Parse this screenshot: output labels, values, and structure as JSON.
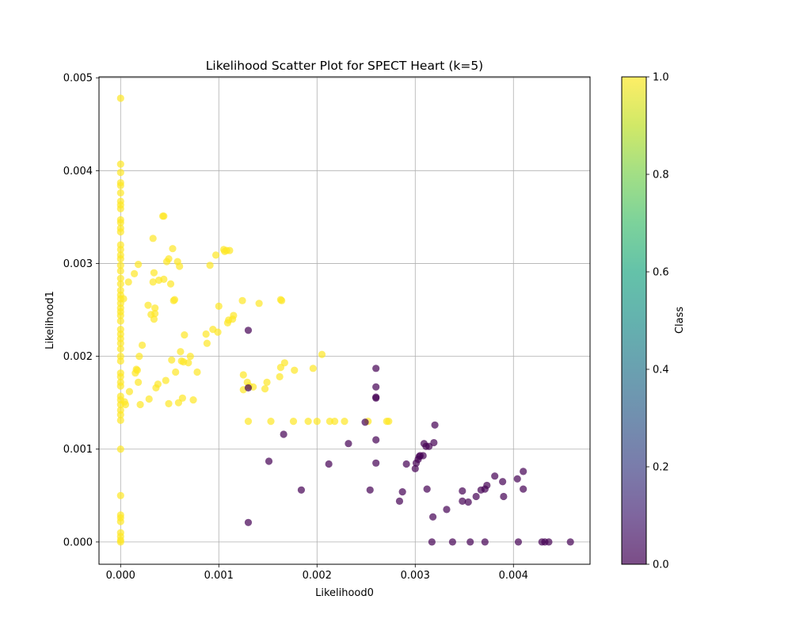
{
  "chart_data": {
    "type": "scatter",
    "title": "Likelihood Scatter Plot for SPECT Heart (k=5)",
    "xlabel": "Likelihood0",
    "ylabel": "Likelihood1",
    "xlim": [
      -0.00022,
      0.00478
    ],
    "ylim": [
      -0.00024,
      0.00501
    ],
    "x_ticks": [
      "0.000",
      "0.001",
      "0.002",
      "0.003",
      "0.004"
    ],
    "y_ticks": [
      "0.000",
      "0.001",
      "0.002",
      "0.003",
      "0.004",
      "0.005"
    ],
    "grid": true,
    "colorbar": {
      "label": "Class",
      "range": [
        0.0,
        1.0
      ],
      "ticks": [
        "0.0",
        "0.2",
        "0.4",
        "0.6",
        "0.8",
        "1.0"
      ],
      "colormap": "viridis"
    },
    "colors": {
      "class_0": "#440154",
      "class_1": "#fde725"
    },
    "marker_alpha": 0.7,
    "series": [
      {
        "class": 1,
        "points": [
          [
            0.0,
            0.00478
          ],
          [
            0.0,
            0.00407
          ],
          [
            0.0,
            0.00398
          ],
          [
            0.0,
            0.00387
          ],
          [
            0.0,
            0.00384
          ],
          [
            0.0,
            0.00376
          ],
          [
            0.0,
            0.00367
          ],
          [
            0.0,
            0.00363
          ],
          [
            0.0,
            0.00359
          ],
          [
            0.0,
            0.00347
          ],
          [
            0.0,
            0.00344
          ],
          [
            0.0,
            0.00338
          ],
          [
            0.0,
            0.00334
          ],
          [
            0.0,
            0.0032
          ],
          [
            0.0,
            0.00315
          ],
          [
            0.0,
            0.00309
          ],
          [
            0.0,
            0.00305
          ],
          [
            0.0,
            0.00298
          ],
          [
            0.0,
            0.00292
          ],
          [
            0.0,
            0.00284
          ],
          [
            0.0,
            0.00278
          ],
          [
            0.0,
            0.00271
          ],
          [
            0.0,
            0.00266
          ],
          [
            0.0,
            0.00262
          ],
          [
            0.0,
            0.00257
          ],
          [
            0.0,
            0.00252
          ],
          [
            0.0,
            0.00248
          ],
          [
            0.0,
            0.00244
          ],
          [
            0.0,
            0.00238
          ],
          [
            0.0,
            0.00229
          ],
          [
            0.0,
            0.00224
          ],
          [
            0.0,
            0.00219
          ],
          [
            0.0,
            0.00214
          ],
          [
            0.0,
            0.00208
          ],
          [
            0.0,
            0.002
          ],
          [
            0.0,
            0.00195
          ],
          [
            0.0,
            0.00182
          ],
          [
            0.0,
            0.00178
          ],
          [
            0.0,
            0.00172
          ],
          [
            0.0,
            0.00168
          ],
          [
            0.0,
            0.00157
          ],
          [
            0.0,
            0.00153
          ],
          [
            0.0,
            0.00148
          ],
          [
            0.0,
            0.00142
          ],
          [
            0.0,
            0.00137
          ],
          [
            0.0,
            0.00131
          ],
          [
            0.0,
            0.001
          ],
          [
            0.0,
            0.0005
          ],
          [
            0.0,
            0.00029
          ],
          [
            0.0,
            0.00026
          ],
          [
            0.0,
            0.00022
          ],
          [
            0.0,
            0.0001
          ],
          [
            0.0,
            6e-05
          ],
          [
            0.0,
            2e-05
          ],
          [
            0.0,
            0.0
          ],
          [
            3e-05,
            0.00262
          ],
          [
            4e-05,
            0.00151
          ],
          [
            5e-05,
            0.00148
          ],
          [
            8e-05,
            0.0028
          ],
          [
            9e-05,
            0.00162
          ],
          [
            0.00014,
            0.00289
          ],
          [
            0.00015,
            0.00182
          ],
          [
            0.00016,
            0.00186
          ],
          [
            0.00017,
            0.00185
          ],
          [
            0.00018,
            0.00299
          ],
          [
            0.00018,
            0.00172
          ],
          [
            0.00019,
            0.002
          ],
          [
            0.0002,
            0.00148
          ],
          [
            0.00022,
            0.00212
          ],
          [
            0.00028,
            0.00255
          ],
          [
            0.00029,
            0.00154
          ],
          [
            0.00031,
            0.00245
          ],
          [
            0.00033,
            0.00327
          ],
          [
            0.00033,
            0.0028
          ],
          [
            0.00034,
            0.0029
          ],
          [
            0.00034,
            0.0024
          ],
          [
            0.00035,
            0.00252
          ],
          [
            0.00035,
            0.00246
          ],
          [
            0.00036,
            0.00166
          ],
          [
            0.00038,
            0.0017
          ],
          [
            0.00039,
            0.00282
          ],
          [
            0.00043,
            0.00351
          ],
          [
            0.00044,
            0.00351
          ],
          [
            0.00044,
            0.00283
          ],
          [
            0.00046,
            0.00174
          ],
          [
            0.00047,
            0.00302
          ],
          [
            0.00049,
            0.00305
          ],
          [
            0.00049,
            0.00149
          ],
          [
            0.00051,
            0.00278
          ],
          [
            0.00052,
            0.00196
          ],
          [
            0.00053,
            0.00316
          ],
          [
            0.00054,
            0.0026
          ],
          [
            0.00055,
            0.00261
          ],
          [
            0.00056,
            0.00183
          ],
          [
            0.00058,
            0.00302
          ],
          [
            0.00059,
            0.0015
          ],
          [
            0.0006,
            0.00297
          ],
          [
            0.00061,
            0.00205
          ],
          [
            0.00062,
            0.00195
          ],
          [
            0.00063,
            0.00155
          ],
          [
            0.00064,
            0.00194
          ],
          [
            0.00065,
            0.00223
          ],
          [
            0.00069,
            0.00193
          ],
          [
            0.00071,
            0.002
          ],
          [
            0.00074,
            0.00153
          ],
          [
            0.00078,
            0.00183
          ],
          [
            0.00087,
            0.00224
          ],
          [
            0.00088,
            0.00214
          ],
          [
            0.00091,
            0.00298
          ],
          [
            0.00094,
            0.00229
          ],
          [
            0.00097,
            0.00309
          ],
          [
            0.00099,
            0.00226
          ],
          [
            0.001,
            0.00254
          ],
          [
            0.00105,
            0.00315
          ],
          [
            0.00106,
            0.00313
          ],
          [
            0.00108,
            0.00314
          ],
          [
            0.00109,
            0.00236
          ],
          [
            0.0011,
            0.00239
          ],
          [
            0.00111,
            0.00314
          ],
          [
            0.00114,
            0.0024
          ],
          [
            0.00115,
            0.00244
          ],
          [
            0.00124,
            0.0026
          ],
          [
            0.00125,
            0.0018
          ],
          [
            0.00125,
            0.00164
          ],
          [
            0.00129,
            0.00172
          ],
          [
            0.0013,
            0.0013
          ],
          [
            0.00131,
            0.00168
          ],
          [
            0.00135,
            0.00167
          ],
          [
            0.00141,
            0.00257
          ],
          [
            0.00147,
            0.00165
          ],
          [
            0.00149,
            0.00172
          ],
          [
            0.00153,
            0.0013
          ],
          [
            0.00162,
            0.00178
          ],
          [
            0.00163,
            0.00188
          ],
          [
            0.00163,
            0.00261
          ],
          [
            0.00164,
            0.0026
          ],
          [
            0.00167,
            0.00193
          ],
          [
            0.00176,
            0.0013
          ],
          [
            0.00177,
            0.00185
          ],
          [
            0.00191,
            0.0013
          ],
          [
            0.00196,
            0.00187
          ],
          [
            0.002,
            0.0013
          ],
          [
            0.00205,
            0.00202
          ],
          [
            0.00213,
            0.0013
          ],
          [
            0.00218,
            0.0013
          ],
          [
            0.00228,
            0.0013
          ],
          [
            0.00252,
            0.0013
          ],
          [
            0.00271,
            0.0013
          ],
          [
            0.00273,
            0.0013
          ]
        ]
      },
      {
        "class": 0,
        "points": [
          [
            0.0013,
            0.00228
          ],
          [
            0.0013,
            0.00166
          ],
          [
            0.0013,
            0.00021
          ],
          [
            0.00151,
            0.00087
          ],
          [
            0.00166,
            0.00116
          ],
          [
            0.00184,
            0.00056
          ],
          [
            0.00212,
            0.00084
          ],
          [
            0.00232,
            0.00106
          ],
          [
            0.00249,
            0.00129
          ],
          [
            0.00254,
            0.00056
          ],
          [
            0.0026,
            0.00187
          ],
          [
            0.0026,
            0.00167
          ],
          [
            0.0026,
            0.00156
          ],
          [
            0.0026,
            0.00155
          ],
          [
            0.0026,
            0.0011
          ],
          [
            0.0026,
            0.00085
          ],
          [
            0.00284,
            0.00044
          ],
          [
            0.00287,
            0.00054
          ],
          [
            0.00291,
            0.00084
          ],
          [
            0.003,
            0.00079
          ],
          [
            0.00301,
            0.00085
          ],
          [
            0.00303,
            0.00089
          ],
          [
            0.00304,
            0.00092
          ],
          [
            0.00305,
            0.00093
          ],
          [
            0.00308,
            0.00093
          ],
          [
            0.00309,
            0.00106
          ],
          [
            0.00311,
            0.00103
          ],
          [
            0.00312,
            0.00057
          ],
          [
            0.00314,
            0.00103
          ],
          [
            0.00317,
            0.0
          ],
          [
            0.00318,
            0.00027
          ],
          [
            0.00319,
            0.00107
          ],
          [
            0.0032,
            0.00126
          ],
          [
            0.00332,
            0.00035
          ],
          [
            0.00338,
            0.0
          ],
          [
            0.00348,
            0.00055
          ],
          [
            0.00348,
            0.00044
          ],
          [
            0.00354,
            0.00043
          ],
          [
            0.00356,
            0.0
          ],
          [
            0.00362,
            0.00049
          ],
          [
            0.00367,
            0.00056
          ],
          [
            0.00371,
            0.0
          ],
          [
            0.00371,
            0.00057
          ],
          [
            0.00373,
            0.00061
          ],
          [
            0.00381,
            0.00071
          ],
          [
            0.00389,
            0.00065
          ],
          [
            0.0039,
            0.00049
          ],
          [
            0.00404,
            0.00068
          ],
          [
            0.00405,
            0.0
          ],
          [
            0.0041,
            0.00076
          ],
          [
            0.0041,
            0.00057
          ],
          [
            0.00429,
            0.0
          ],
          [
            0.00432,
            0.0
          ],
          [
            0.00436,
            0.0
          ],
          [
            0.00458,
            0.0
          ]
        ]
      }
    ]
  }
}
